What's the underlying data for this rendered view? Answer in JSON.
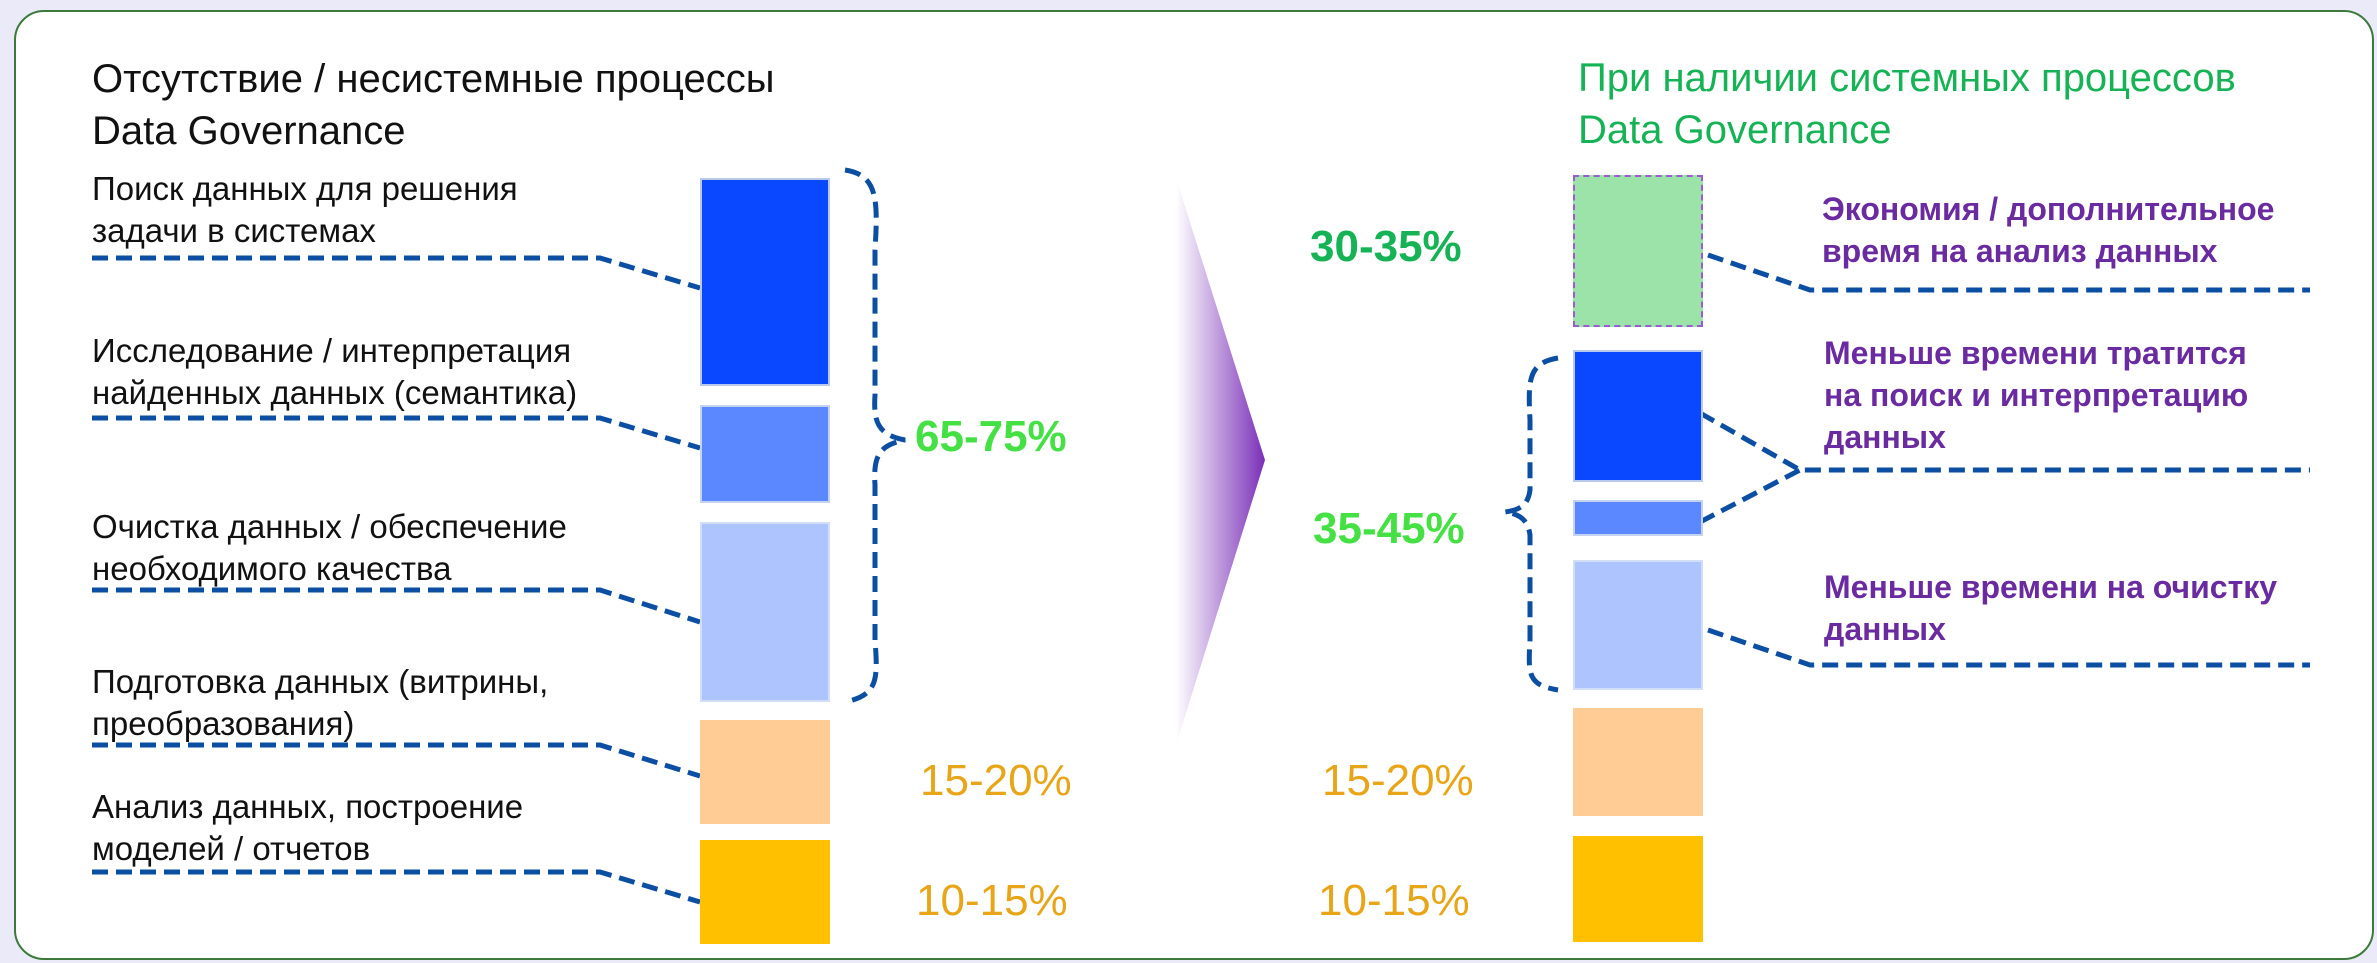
{
  "left_panel": {
    "title_line1": "Отсутствие / несистемные процессы",
    "title_line2": "Data Governance",
    "steps": [
      {
        "line1": "Поиск данных для решения",
        "line2": "задачи в системах"
      },
      {
        "line1": "Исследование / интерпретация",
        "line2": "найденных данных (семантика)"
      },
      {
        "line1": "Очистка данных / обеспечение",
        "line2": "необходимого качества"
      },
      {
        "line1": "Подготовка данных (витрины,",
        "line2": "преобразования)"
      },
      {
        "line1": "Анализ данных, построение",
        "line2": "моделей / отчетов"
      }
    ],
    "group_share": "65-75%",
    "prep_share": "15-20%",
    "analysis_share": "10-15%"
  },
  "right_panel": {
    "title_line1": "При наличии системных процессов",
    "title_line2": "Data Governance",
    "saving_share": "30-35%",
    "group_share": "35-45%",
    "prep_share": "15-20%",
    "analysis_share": "10-15%",
    "notes": [
      {
        "line1": "Экономия / дополнительное",
        "line2": "время на анализ данных"
      },
      {
        "line1": "Меньше времени тратится",
        "line2": "на поиск и интерпретацию",
        "line3": "данных"
      },
      {
        "line1": "Меньше времени на очистку",
        "line2": "данных"
      }
    ]
  },
  "colors": {
    "search": "#0a48ff",
    "interpretation": "#5b87ff",
    "cleaning": "#adc4ff",
    "preparation": "#ffcc96",
    "analysis": "#ffc000",
    "saving": "#9be3a8",
    "connector": "#0b4ea2",
    "accent_green": "#16b356",
    "bright_green": "#44e044",
    "amber": "#e8a517",
    "purple": "#6a2aa0"
  }
}
